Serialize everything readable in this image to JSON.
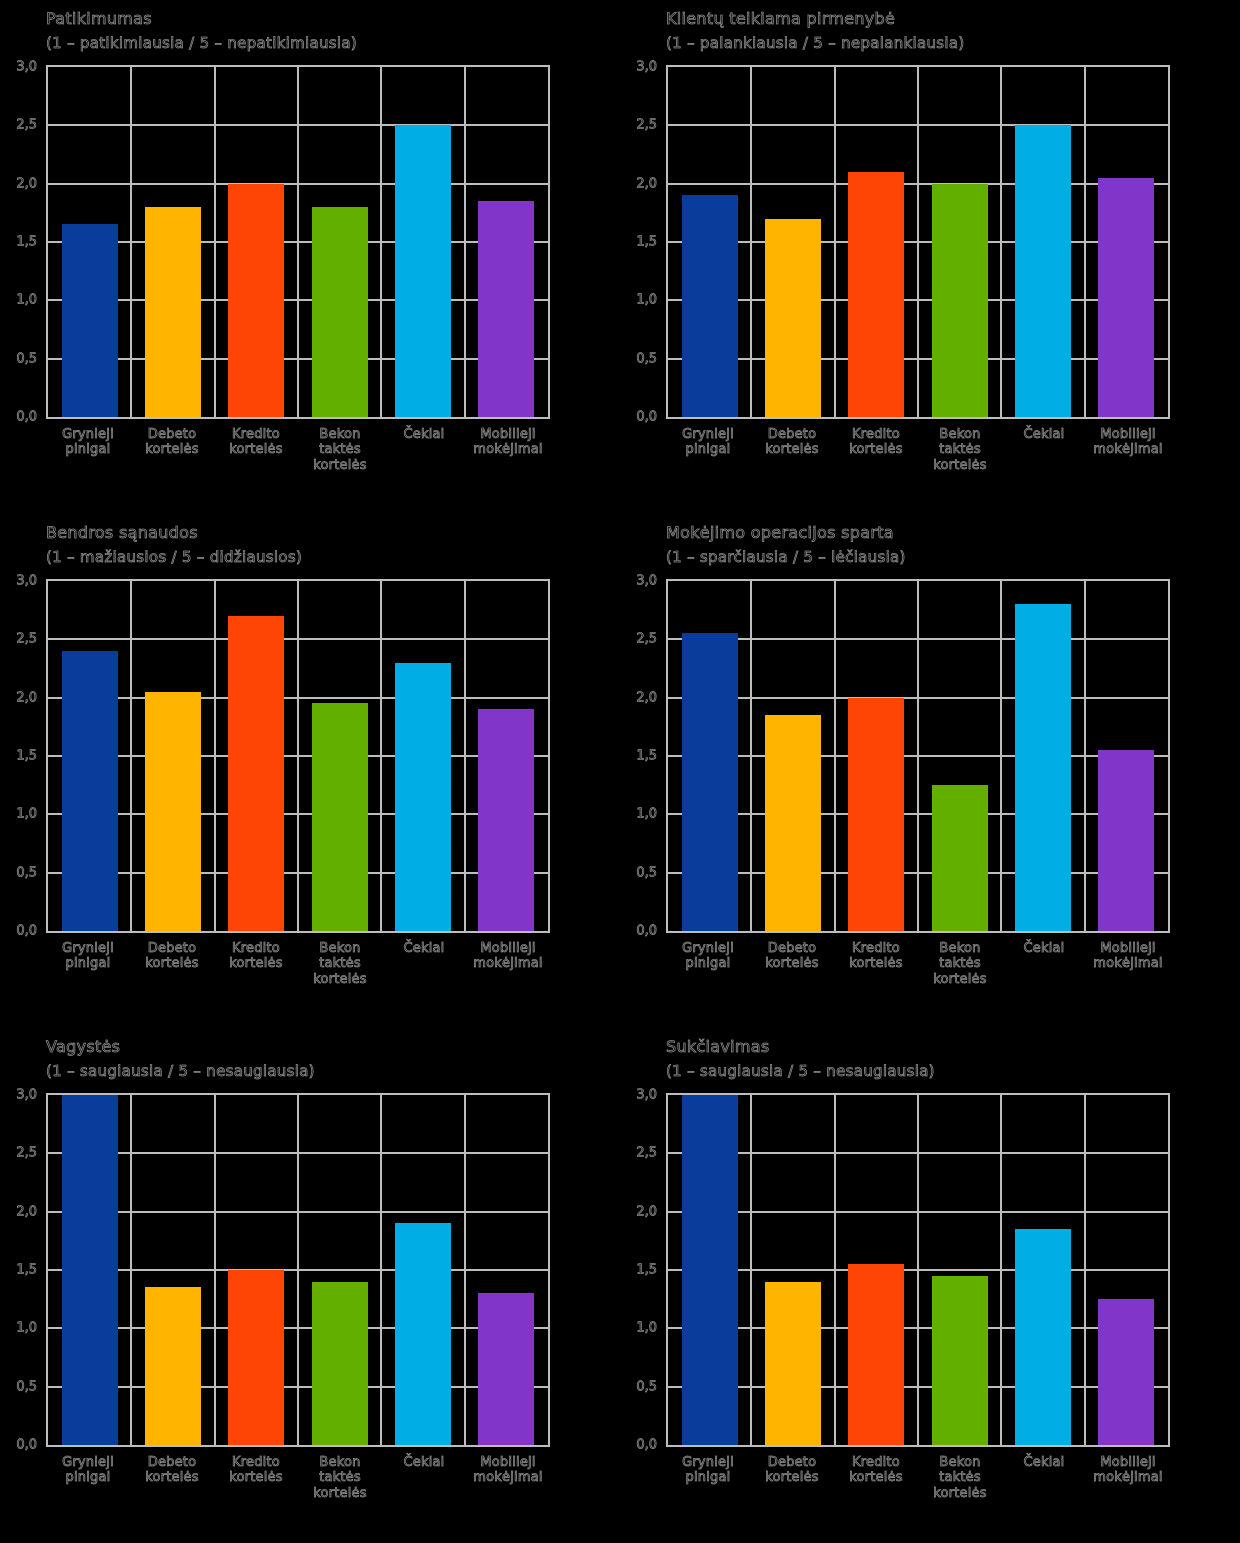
{
  "colors": {
    "background": "#000000",
    "grid": "#BDBDBD",
    "text": "#000000",
    "text_outline": "#8A8A8A",
    "bar_palette": [
      "#0A3C9C",
      "#FFB400",
      "#FF4505",
      "#62AF00",
      "#00AEE6",
      "#8136C9"
    ]
  },
  "y_axis": {
    "tick_labels": [
      "3,0",
      "2,5",
      "2,0",
      "1,5",
      "1,0",
      "0,5",
      "0,0"
    ],
    "min": 0.0,
    "max": 3.0,
    "step": 0.5
  },
  "categories": [
    "Grynieji pinigai",
    "Debeto kortelės",
    "Kredito kortelės",
    "Bekontaktės kortelės",
    "Čekiai",
    "Mobilieji mokėjimai"
  ],
  "category_label_lines": [
    [
      "Grynieji",
      "pinigai"
    ],
    [
      "Debeto",
      "kortelės"
    ],
    [
      "Kredito",
      "kortelės"
    ],
    [
      "Bekon",
      "taktės",
      "kortelės"
    ],
    [
      "Čekiai"
    ],
    [
      "Mobilieji",
      "mokėjimai"
    ]
  ],
  "chart_data": [
    {
      "type": "bar",
      "title": "Patikimumas",
      "subtitle": "(1 – patikimiausia / 5 – nepatikimiausia)",
      "categories": [
        "Grynieji pinigai",
        "Debeto kortelės",
        "Kredito kortelės",
        "Bekontaktės kortelės",
        "Čekiai",
        "Mobilieji mokėjimai"
      ],
      "values": [
        1.65,
        1.8,
        2.0,
        1.8,
        2.5,
        1.85
      ],
      "ylim": [
        0,
        3
      ],
      "grid": true,
      "legend": false
    },
    {
      "type": "bar",
      "title": "Klientų teikiama pirmenybė",
      "subtitle": "(1 – palankiausia / 5 – nepalankiausia)",
      "categories": [
        "Grynieji pinigai",
        "Debeto kortelės",
        "Kredito kortelės",
        "Bekontaktės kortelės",
        "Čekiai",
        "Mobilieji mokėjimai"
      ],
      "values": [
        1.9,
        1.7,
        2.1,
        2.0,
        2.5,
        2.05
      ],
      "ylim": [
        0,
        3
      ],
      "grid": true,
      "legend": false
    },
    {
      "type": "bar",
      "title": "Bendros sąnaudos",
      "subtitle": "(1 – mažiausios / 5 – didžiausios)",
      "categories": [
        "Grynieji pinigai",
        "Debeto kortelės",
        "Kredito kortelės",
        "Bekontaktės kortelės",
        "Čekiai",
        "Mobilieji mokėjimai"
      ],
      "values": [
        2.4,
        2.05,
        2.7,
        1.95,
        2.3,
        1.9
      ],
      "ylim": [
        0,
        3
      ],
      "grid": true,
      "legend": false
    },
    {
      "type": "bar",
      "title": "Mokėjimo operacijos sparta",
      "subtitle": "(1 – sparčiausia / 5 – lėčiausia)",
      "categories": [
        "Grynieji pinigai",
        "Debeto kortelės",
        "Kredito kortelės",
        "Bekontaktės kortelės",
        "Čekiai",
        "Mobilieji mokėjimai"
      ],
      "values": [
        2.55,
        1.85,
        2.0,
        1.25,
        2.8,
        1.55
      ],
      "ylim": [
        0,
        3
      ],
      "grid": true,
      "legend": false
    },
    {
      "type": "bar",
      "title": "Vagystės",
      "subtitle": "(1 – saugiausia / 5 – nesaugiausia)",
      "categories": [
        "Grynieji pinigai",
        "Debeto kortelės",
        "Kredito kortelės",
        "Bekontaktės kortelės",
        "Čekiai",
        "Mobilieji mokėjimai"
      ],
      "values": [
        3.0,
        1.35,
        1.5,
        1.4,
        1.9,
        1.3
      ],
      "ylim": [
        0,
        3
      ],
      "grid": true,
      "legend": false
    },
    {
      "type": "bar",
      "title": "Sukčiavimas",
      "subtitle": "(1 – saugiausia / 5 – nesaugiausia)",
      "categories": [
        "Grynieji pinigai",
        "Debeto kortelės",
        "Kredito kortelės",
        "Bekontaktės kortelės",
        "Čekiai",
        "Mobilieji mokėjimai"
      ],
      "values": [
        3.0,
        1.4,
        1.55,
        1.45,
        1.85,
        1.25
      ],
      "ylim": [
        0,
        3
      ],
      "grid": true,
      "legend": false
    }
  ]
}
